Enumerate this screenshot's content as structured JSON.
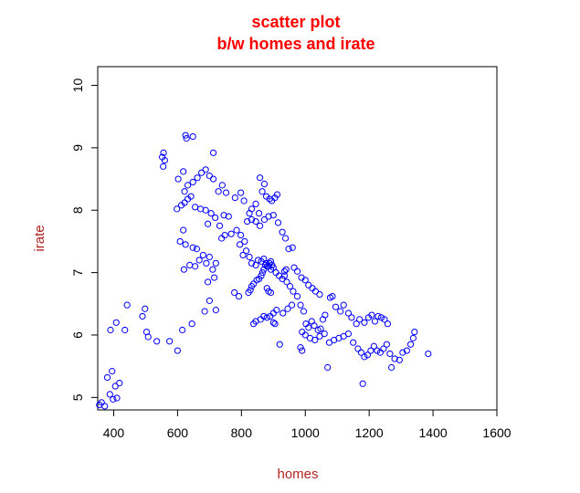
{
  "chart_data": {
    "type": "scatter",
    "title_lines": [
      "scatter plot",
      "b/w homes and irate"
    ],
    "xlabel": "homes",
    "ylabel": "irate",
    "xlim": [
      350,
      1600
    ],
    "ylim": [
      4.8,
      10.3
    ],
    "xticks": [
      400,
      600,
      800,
      1000,
      1200,
      1400,
      1600
    ],
    "yticks": [
      5,
      6,
      7,
      8,
      9,
      10
    ],
    "grid": false,
    "legend": "none",
    "colors": {
      "title": "#ff0000",
      "axis_label": "#b22222",
      "points": "#0000ff",
      "axis": "#000000"
    },
    "points": [
      [
        355,
        4.88
      ],
      [
        362,
        4.92
      ],
      [
        372,
        4.86
      ],
      [
        380,
        5.32
      ],
      [
        388,
        5.05
      ],
      [
        395,
        5.42
      ],
      [
        398,
        4.97
      ],
      [
        405,
        5.18
      ],
      [
        410,
        4.99
      ],
      [
        418,
        5.23
      ],
      [
        390,
        6.08
      ],
      [
        408,
        6.2
      ],
      [
        435,
        6.08
      ],
      [
        442,
        6.48
      ],
      [
        490,
        6.3
      ],
      [
        498,
        6.42
      ],
      [
        503,
        6.05
      ],
      [
        508,
        5.97
      ],
      [
        535,
        5.9
      ],
      [
        575,
        5.9
      ],
      [
        600,
        5.75
      ],
      [
        615,
        6.08
      ],
      [
        645,
        6.18
      ],
      [
        620,
        7.05
      ],
      [
        638,
        7.12
      ],
      [
        608,
        7.5
      ],
      [
        618,
        7.68
      ],
      [
        648,
        7.4
      ],
      [
        655,
        7.1
      ],
      [
        668,
        7.2
      ],
      [
        625,
        7.45
      ],
      [
        660,
        7.38
      ],
      [
        680,
        7.28
      ],
      [
        690,
        7.15
      ],
      [
        700,
        7.25
      ],
      [
        710,
        7.05
      ],
      [
        720,
        7.15
      ],
      [
        715,
        6.92
      ],
      [
        695,
        6.85
      ],
      [
        700,
        6.55
      ],
      [
        685,
        6.38
      ],
      [
        720,
        6.4
      ],
      [
        778,
        6.68
      ],
      [
        792,
        6.62
      ],
      [
        738,
        7.55
      ],
      [
        748,
        7.6
      ],
      [
        768,
        7.62
      ],
      [
        785,
        7.68
      ],
      [
        798,
        7.6
      ],
      [
        810,
        7.5
      ],
      [
        745,
        7.92
      ],
      [
        760,
        7.9
      ],
      [
        732,
        7.75
      ],
      [
        718,
        7.88
      ],
      [
        705,
        7.95
      ],
      [
        695,
        7.78
      ],
      [
        598,
        8.02
      ],
      [
        612,
        8.08
      ],
      [
        622,
        8.12
      ],
      [
        632,
        8.18
      ],
      [
        642,
        8.22
      ],
      [
        655,
        8.05
      ],
      [
        672,
        8.02
      ],
      [
        688,
        8.0
      ],
      [
        622,
        8.3
      ],
      [
        632,
        8.4
      ],
      [
        648,
        8.45
      ],
      [
        662,
        8.52
      ],
      [
        675,
        8.6
      ],
      [
        688,
        8.65
      ],
      [
        700,
        8.55
      ],
      [
        712,
        8.5
      ],
      [
        602,
        8.5
      ],
      [
        618,
        8.62
      ],
      [
        555,
        8.7
      ],
      [
        560,
        8.8
      ],
      [
        552,
        8.85
      ],
      [
        556,
        8.92
      ],
      [
        628,
        9.15
      ],
      [
        625,
        9.2
      ],
      [
        648,
        9.18
      ],
      [
        712,
        8.92
      ],
      [
        728,
        8.3
      ],
      [
        740,
        8.4
      ],
      [
        752,
        8.28
      ],
      [
        780,
        8.2
      ],
      [
        798,
        8.28
      ],
      [
        808,
        8.15
      ],
      [
        825,
        7.95
      ],
      [
        832,
        7.85
      ],
      [
        845,
        7.82
      ],
      [
        858,
        7.75
      ],
      [
        872,
        7.85
      ],
      [
        885,
        7.9
      ],
      [
        900,
        7.92
      ],
      [
        915,
        7.8
      ],
      [
        928,
        7.65
      ],
      [
        938,
        7.55
      ],
      [
        948,
        7.38
      ],
      [
        960,
        7.4
      ],
      [
        858,
        8.52
      ],
      [
        865,
        8.3
      ],
      [
        872,
        8.42
      ],
      [
        878,
        8.22
      ],
      [
        888,
        8.18
      ],
      [
        895,
        8.15
      ],
      [
        905,
        8.2
      ],
      [
        912,
        8.25
      ],
      [
        845,
        8.1
      ],
      [
        832,
        8.02
      ],
      [
        855,
        7.95
      ],
      [
        818,
        7.82
      ],
      [
        795,
        7.45
      ],
      [
        805,
        7.28
      ],
      [
        815,
        7.35
      ],
      [
        825,
        7.25
      ],
      [
        832,
        7.15
      ],
      [
        845,
        7.12
      ],
      [
        852,
        7.2
      ],
      [
        862,
        7.18
      ],
      [
        870,
        7.22
      ],
      [
        878,
        7.15
      ],
      [
        885,
        7.1
      ],
      [
        892,
        7.05
      ],
      [
        900,
        7.08
      ],
      [
        908,
        7.0
      ],
      [
        918,
        6.95
      ],
      [
        928,
        6.9
      ],
      [
        935,
        6.95
      ],
      [
        942,
        6.85
      ],
      [
        952,
        6.78
      ],
      [
        962,
        6.7
      ],
      [
        975,
        6.62
      ],
      [
        985,
        6.48
      ],
      [
        995,
        6.38
      ],
      [
        1002,
        6.18
      ],
      [
        1010,
        6.12
      ],
      [
        1020,
        6.22
      ],
      [
        1028,
        6.15
      ],
      [
        1040,
        6.08
      ],
      [
        1048,
        6.1
      ],
      [
        1055,
        6.25
      ],
      [
        1062,
        6.32
      ],
      [
        1078,
        6.6
      ],
      [
        1085,
        6.62
      ],
      [
        1095,
        6.45
      ],
      [
        1110,
        6.38
      ],
      [
        1120,
        6.48
      ],
      [
        1135,
        6.35
      ],
      [
        1145,
        6.28
      ],
      [
        1160,
        6.18
      ],
      [
        1170,
        6.25
      ],
      [
        1185,
        6.2
      ],
      [
        1198,
        6.28
      ],
      [
        1208,
        6.32
      ],
      [
        1218,
        6.22
      ],
      [
        1228,
        6.3
      ],
      [
        1238,
        6.28
      ],
      [
        1248,
        6.25
      ],
      [
        1258,
        6.18
      ],
      [
        990,
        6.05
      ],
      [
        1000,
        6.0
      ],
      [
        1015,
        5.95
      ],
      [
        1030,
        5.92
      ],
      [
        1045,
        5.98
      ],
      [
        1060,
        6.02
      ],
      [
        1075,
        5.88
      ],
      [
        1090,
        5.92
      ],
      [
        1105,
        5.95
      ],
      [
        1120,
        5.98
      ],
      [
        1135,
        6.02
      ],
      [
        1150,
        5.88
      ],
      [
        1165,
        5.78
      ],
      [
        1175,
        5.72
      ],
      [
        1185,
        5.65
      ],
      [
        1195,
        5.68
      ],
      [
        1205,
        5.75
      ],
      [
        1215,
        5.82
      ],
      [
        1225,
        5.75
      ],
      [
        1235,
        5.72
      ],
      [
        1245,
        5.78
      ],
      [
        1255,
        5.85
      ],
      [
        1265,
        5.7
      ],
      [
        1280,
        5.62
      ],
      [
        1295,
        5.6
      ],
      [
        1305,
        5.72
      ],
      [
        1318,
        5.75
      ],
      [
        1330,
        5.85
      ],
      [
        1338,
        5.95
      ],
      [
        1342,
        6.05
      ],
      [
        1385,
        5.7
      ],
      [
        1270,
        5.48
      ],
      [
        1180,
        5.22
      ],
      [
        1070,
        5.48
      ],
      [
        985,
        5.8
      ],
      [
        990,
        5.75
      ],
      [
        920,
        5.85
      ],
      [
        900,
        6.2
      ],
      [
        905,
        6.18
      ],
      [
        838,
        6.18
      ],
      [
        845,
        6.22
      ],
      [
        860,
        6.25
      ],
      [
        870,
        6.3
      ],
      [
        880,
        6.28
      ],
      [
        890,
        6.3
      ],
      [
        900,
        6.35
      ],
      [
        910,
        6.4
      ],
      [
        930,
        6.35
      ],
      [
        945,
        6.42
      ],
      [
        958,
        6.48
      ],
      [
        875,
        7.12
      ],
      [
        880,
        7.1
      ],
      [
        888,
        7.15
      ],
      [
        892,
        7.18
      ],
      [
        896,
        7.12
      ],
      [
        870,
        7.05
      ],
      [
        866,
        7.0
      ],
      [
        862,
        6.95
      ],
      [
        855,
        6.9
      ],
      [
        848,
        6.88
      ],
      [
        838,
        6.82
      ],
      [
        832,
        6.78
      ],
      [
        828,
        6.72
      ],
      [
        822,
        6.68
      ],
      [
        880,
        6.75
      ],
      [
        885,
        6.7
      ],
      [
        892,
        6.68
      ],
      [
        935,
        7.02
      ],
      [
        940,
        7.05
      ],
      [
        965,
        7.08
      ],
      [
        975,
        7.02
      ],
      [
        988,
        6.92
      ],
      [
        1000,
        6.88
      ],
      [
        1010,
        6.8
      ],
      [
        1022,
        6.75
      ],
      [
        1032,
        6.7
      ],
      [
        1045,
        6.65
      ]
    ]
  }
}
